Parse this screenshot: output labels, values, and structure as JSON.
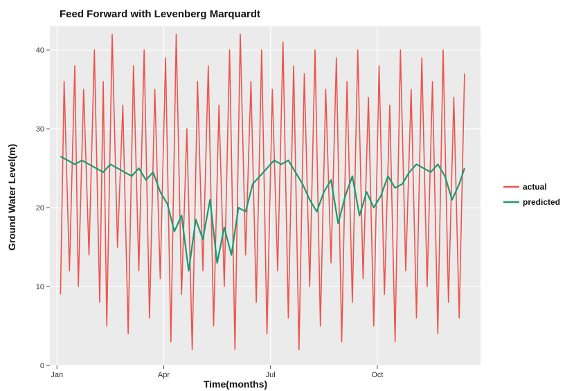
{
  "chart_data": {
    "type": "line",
    "title": "Feed Forward with Levenberg Marquardt",
    "xlabel": "Time(months)",
    "ylabel": "Ground Water Level(m)",
    "x_axis": {
      "unit": "months",
      "range": [
        -0.2,
        11.9
      ],
      "ticks": [
        {
          "value": 0,
          "label": "Jan"
        },
        {
          "value": 3,
          "label": "Apr"
        },
        {
          "value": 6,
          "label": "Jul"
        },
        {
          "value": 9,
          "label": "Oct"
        }
      ]
    },
    "y_axis": {
      "range": [
        0,
        43
      ],
      "ticks": [
        0,
        10,
        20,
        30,
        40
      ]
    },
    "grid": true,
    "background": "#ebebeb",
    "legend": {
      "placement": "right",
      "entries": [
        "actual",
        "predicted"
      ]
    },
    "series": [
      {
        "name": "actual",
        "color": "#f0524a",
        "x": [
          0.1,
          0.2,
          0.35,
          0.5,
          0.6,
          0.75,
          0.9,
          1.05,
          1.2,
          1.3,
          1.4,
          1.55,
          1.7,
          1.85,
          2.0,
          2.15,
          2.3,
          2.45,
          2.6,
          2.75,
          2.9,
          3.05,
          3.2,
          3.35,
          3.5,
          3.65,
          3.8,
          3.95,
          4.1,
          4.25,
          4.4,
          4.55,
          4.7,
          4.85,
          5.0,
          5.15,
          5.3,
          5.45,
          5.6,
          5.75,
          5.9,
          6.05,
          6.2,
          6.35,
          6.5,
          6.65,
          6.8,
          6.95,
          7.1,
          7.25,
          7.4,
          7.55,
          7.7,
          7.85,
          8.0,
          8.15,
          8.3,
          8.45,
          8.6,
          8.75,
          8.9,
          9.05,
          9.2,
          9.35,
          9.5,
          9.65,
          9.8,
          9.95,
          10.1,
          10.25,
          10.4,
          10.55,
          10.7,
          10.85,
          11.0,
          11.15,
          11.3,
          11.45
        ],
        "values": [
          9,
          36,
          12,
          38,
          10,
          35,
          14,
          40,
          8,
          36,
          5,
          42,
          15,
          33,
          4,
          38,
          12,
          40,
          6,
          35,
          11,
          39,
          3,
          42,
          9,
          30,
          2,
          36,
          12,
          38,
          5,
          33,
          10,
          40,
          2,
          42,
          14,
          36,
          8,
          40,
          4,
          35,
          12,
          41,
          6,
          38,
          2,
          37,
          10,
          40,
          5,
          35,
          13,
          39,
          3,
          36,
          8,
          40,
          11,
          34,
          5,
          38,
          9,
          33,
          3,
          40,
          12,
          35,
          6,
          39,
          10,
          36,
          4,
          40,
          8,
          34,
          6,
          37
        ]
      },
      {
        "name": "predicted",
        "color": "#1a9a72",
        "x": [
          0.1,
          0.3,
          0.5,
          0.7,
          0.9,
          1.1,
          1.3,
          1.5,
          1.7,
          1.9,
          2.1,
          2.3,
          2.5,
          2.7,
          2.9,
          3.1,
          3.3,
          3.5,
          3.7,
          3.9,
          4.1,
          4.3,
          4.5,
          4.7,
          4.9,
          5.1,
          5.3,
          5.5,
          5.7,
          5.9,
          6.1,
          6.3,
          6.5,
          6.7,
          6.9,
          7.1,
          7.3,
          7.5,
          7.7,
          7.9,
          8.1,
          8.3,
          8.5,
          8.7,
          8.9,
          9.1,
          9.3,
          9.5,
          9.7,
          9.9,
          10.1,
          10.3,
          10.5,
          10.7,
          10.9,
          11.1,
          11.3,
          11.45
        ],
        "values": [
          26.5,
          26,
          25.5,
          26,
          25.5,
          25,
          24.5,
          25.5,
          25,
          24.5,
          24,
          25,
          23.5,
          24.5,
          22,
          20.5,
          17,
          19,
          12,
          18.5,
          16,
          21,
          13,
          17.5,
          14,
          20,
          19.5,
          23,
          24,
          25,
          26,
          25.5,
          26,
          24.5,
          23,
          21,
          19.5,
          22,
          23.5,
          18,
          21.5,
          24,
          19,
          22,
          20,
          21.5,
          24,
          22.5,
          23,
          24.5,
          25.5,
          25,
          24.5,
          25.5,
          24,
          21,
          23,
          25
        ]
      }
    ]
  }
}
